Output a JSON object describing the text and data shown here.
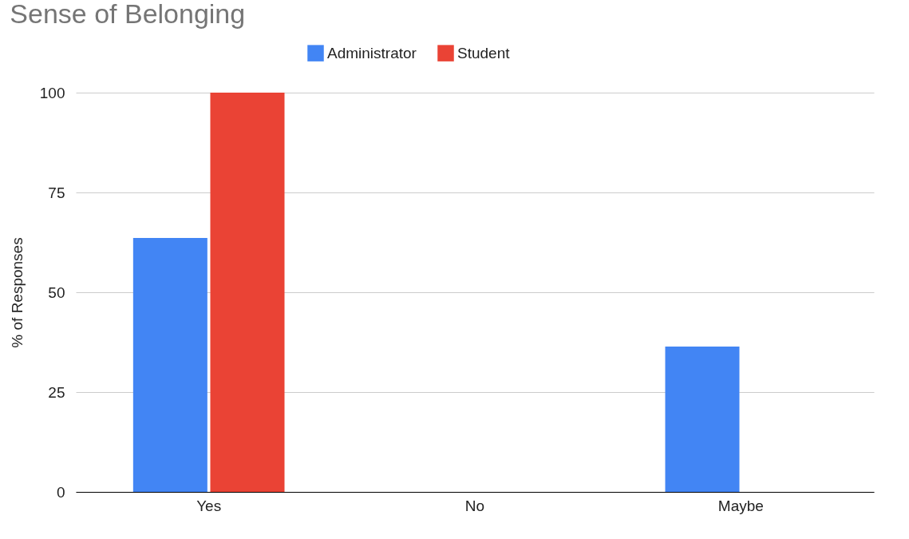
{
  "chart_data": {
    "type": "bar",
    "title": "Sense of Belonging",
    "ylabel": "% of Responses",
    "categories": [
      "Yes",
      "No",
      "Maybe"
    ],
    "series": [
      {
        "name": "Administrator",
        "color": "#4285f4",
        "values": [
          63.6,
          0,
          36.4
        ]
      },
      {
        "name": "Student",
        "color": "#ea4335",
        "values": [
          100,
          0,
          0
        ]
      }
    ],
    "ylim": [
      0,
      100
    ],
    "yticks": [
      0,
      25,
      50,
      75,
      100
    ],
    "grid": "y",
    "legend": "top"
  }
}
